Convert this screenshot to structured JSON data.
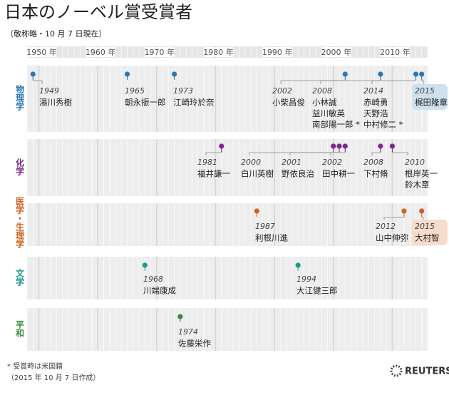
{
  "chart_data": {
    "type": "timeline",
    "title": "日本のノーベル賞受賞者",
    "subtitle": "（敬称略・10 月 7 日現在）",
    "xlim": [
      1948,
      2016
    ],
    "xticks": [
      {
        "value": 1950,
        "label": "1950 年"
      },
      {
        "value": 1960,
        "label": "1960 年"
      },
      {
        "value": 1970,
        "label": "1970 年"
      },
      {
        "value": 1980,
        "label": "1980 年"
      },
      {
        "value": 1990,
        "label": "1990 年"
      },
      {
        "value": 2000,
        "label": "2000 年"
      },
      {
        "value": 2010,
        "label": "2010 年"
      }
    ],
    "rows": [
      {
        "name": "物理学",
        "color": "#2a78b8",
        "items": [
          {
            "year": 1949,
            "names": [
              "湯川秀樹"
            ]
          },
          {
            "year": 1965,
            "names": [
              "朝永振一郎"
            ]
          },
          {
            "year": 1973,
            "names": [
              "江崎玲於奈"
            ]
          },
          {
            "year": 2002,
            "names": [
              "小柴昌俊"
            ]
          },
          {
            "year": 2008,
            "names": [
              "小林誠",
              "益川敏英",
              "南部陽一郎 *"
            ]
          },
          {
            "year": 2014,
            "names": [
              "赤崎勇",
              "天野浩",
              "中村修二 *"
            ]
          },
          {
            "year": 2015,
            "names": [
              "梶田隆章"
            ]
          }
        ]
      },
      {
        "name": "化学",
        "color": "#7a2a8a",
        "items": [
          {
            "year": 1981,
            "names": [
              "福井謙一"
            ]
          },
          {
            "year": 2000,
            "names": [
              "白川英樹"
            ]
          },
          {
            "year": 2001,
            "names": [
              "野依良治"
            ]
          },
          {
            "year": 2002,
            "names": [
              "田中耕一"
            ]
          },
          {
            "year": 2008,
            "names": [
              "下村脩"
            ]
          },
          {
            "year": 2010,
            "names": [
              "根岸英一",
              "鈴木章"
            ]
          }
        ]
      },
      {
        "name": "医学・生理学",
        "color": "#d0611e",
        "items": [
          {
            "year": 1987,
            "names": [
              "利根川進"
            ]
          },
          {
            "year": 2012,
            "names": [
              "山中伸弥"
            ]
          },
          {
            "year": 2015,
            "names": [
              "大村智"
            ]
          }
        ]
      },
      {
        "name": "文学",
        "color": "#1a9a8c",
        "items": [
          {
            "year": 1968,
            "names": [
              "川端康成"
            ]
          },
          {
            "year": 1994,
            "names": [
              "大江健三郎"
            ]
          }
        ]
      },
      {
        "name": "平和",
        "color": "#3a8c3a",
        "items": [
          {
            "year": 1974,
            "names": [
              "佐藤栄作"
            ]
          }
        ]
      }
    ],
    "notes": [
      "* 受賞時は米国籍",
      "（2015 年 10 月 7 日作成）"
    ],
    "source": "REUTERS"
  }
}
